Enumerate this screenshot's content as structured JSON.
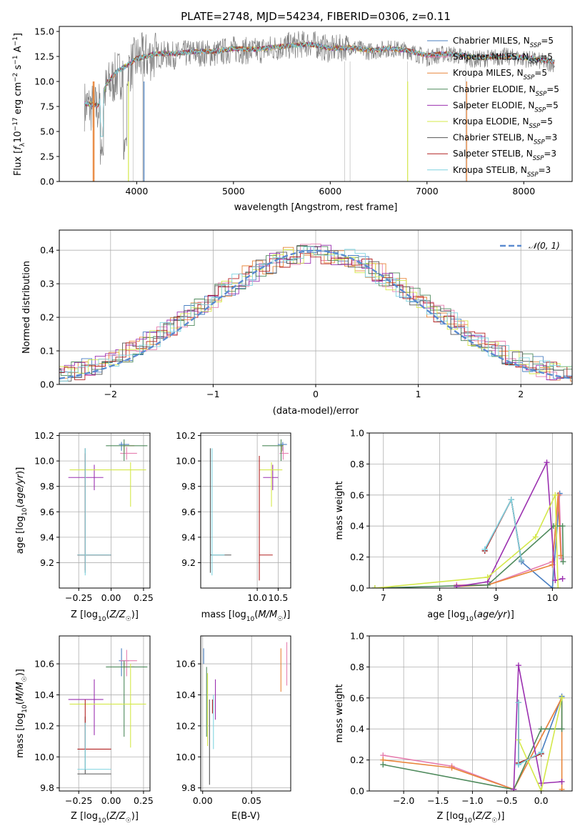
{
  "chart_data": [
    {
      "type": "line",
      "title": "PLATE=2748, MJD=54234, FIBERID=0306, z=0.11",
      "xlabel": "wavelength [Angstrom, rest frame]",
      "ylabel": "Flux [f_λ 10^-17 erg cm^-2 s^-1 A^-1]",
      "xlim": [
        3200,
        8500
      ],
      "ylim": [
        0,
        15.5
      ],
      "xticks": [
        4000,
        5000,
        6000,
        7000,
        8000
      ],
      "yticks": [
        0.0,
        2.5,
        5.0,
        7.5,
        10.0,
        12.5,
        15.0
      ],
      "data_series": {
        "name": "",
        "x": [
          3460,
          3600,
          3700,
          3800,
          3900,
          4000,
          4100,
          4200,
          4400,
          4600,
          4800,
          5000,
          5200,
          5400,
          5600,
          5800,
          6000,
          6200,
          6400,
          6600,
          6800,
          7000,
          7200,
          7500,
          7800,
          8000,
          8300
        ],
        "y": [
          7.6,
          7.2,
          9.5,
          10.6,
          11.0,
          12.2,
          12.4,
          12.7,
          12.6,
          12.9,
          12.8,
          13.2,
          13.0,
          13.3,
          13.6,
          13.8,
          13.2,
          13.5,
          13.0,
          13.3,
          13.1,
          12.4,
          12.8,
          12.2,
          12.5,
          12.3,
          11.8
        ]
      },
      "model_spectrum": {
        "x": [
          3460,
          3600,
          3700,
          3800,
          3900,
          4000,
          4100,
          4200,
          4400,
          4600,
          4800,
          5000,
          5200,
          5400,
          5600,
          5800,
          6000,
          6200,
          6400,
          6600,
          6800,
          7000,
          7200,
          7500,
          7800,
          8000,
          8300
        ],
        "y": [
          7.8,
          7.6,
          10.0,
          11.0,
          11.6,
          12.3,
          12.5,
          12.8,
          12.8,
          13.0,
          13.0,
          13.3,
          13.2,
          13.4,
          13.6,
          13.7,
          13.3,
          13.4,
          13.1,
          13.3,
          13.1,
          12.6,
          12.8,
          12.4,
          12.5,
          12.4,
          12.0
        ]
      },
      "legend_position": "right",
      "legend": [
        {
          "label": "Chabrier MILES, N",
          "sub": "SSP",
          "suffix": "=5",
          "color": "#4a7fc1"
        },
        {
          "label": "Salpeter MILES, N",
          "sub": "SSP",
          "suffix": "=5",
          "color": "#e67fb0"
        },
        {
          "label": "Kroupa MILES, N",
          "sub": "SSP",
          "suffix": "=5",
          "color": "#e8853a"
        },
        {
          "label": "Chabrier ELODIE, N",
          "sub": "SSP",
          "suffix": "=5",
          "color": "#4e8a5c"
        },
        {
          "label": "Salpeter ELODIE, N",
          "sub": "SSP",
          "suffix": "=5",
          "color": "#9b30b0"
        },
        {
          "label": "Kroupa ELODIE, N",
          "sub": "SSP",
          "suffix": "=5",
          "color": "#d4e84a"
        },
        {
          "label": "Chabrier STELIB, N",
          "sub": "SSP",
          "suffix": "=3",
          "color": "#555555"
        },
        {
          "label": "Salpeter STELIB, N",
          "sub": "SSP",
          "suffix": "=3",
          "color": "#b22222"
        },
        {
          "label": "Kroupa STELIB, N",
          "sub": "SSP",
          "suffix": "=3",
          "color": "#7fd4e0"
        }
      ]
    },
    {
      "type": "line",
      "title": "",
      "xlabel": "(data-model)/error",
      "ylabel": "Normed distribution",
      "xlim": [
        -2.5,
        2.5
      ],
      "ylim": [
        0,
        0.46
      ],
      "xticks": [
        -2,
        -1,
        0,
        1,
        2
      ],
      "yticks": [
        0.0,
        0.1,
        0.2,
        0.3,
        0.4
      ],
      "grid": true,
      "legend_position": "top-right",
      "legend_label": "𝒩(0, 1)",
      "histogram_colors": [
        "#4a7fc1",
        "#e67fb0",
        "#e8853a",
        "#4e8a5c",
        "#9b30b0",
        "#d4e84a",
        "#555555",
        "#b22222",
        "#7fd4e0"
      ]
    },
    {
      "type": "scatter",
      "xlabel": "Z [log10(Z/Z☉)]",
      "ylabel": "age  [log10(age/yr)]",
      "xlim": [
        -0.4,
        0.3
      ],
      "ylim": [
        9.0,
        10.22
      ],
      "xticks": [
        -0.25,
        0.0,
        0.25
      ],
      "yticks": [
        9.2,
        9.4,
        9.6,
        9.8,
        10.0,
        10.2
      ],
      "grid": true,
      "points": [
        {
          "x": 0.08,
          "y": 10.13,
          "xerr": [
            0.02,
            0.06
          ],
          "yerr": [
            0.05,
            0.02
          ],
          "color": "#4a7fc1"
        },
        {
          "x": 0.12,
          "y": 10.06,
          "xerr": [
            0.05,
            0.08
          ],
          "yerr": [
            0.05,
            0.05
          ],
          "color": "#e67fb0"
        },
        {
          "x": 0.1,
          "y": 10.12,
          "xerr": [
            0.0,
            0.08
          ],
          "yerr": [
            0.05,
            0.0
          ],
          "color": "#e8853a"
        },
        {
          "x": 0.1,
          "y": 10.12,
          "xerr": [
            0.14,
            0.18
          ],
          "yerr": [
            0.12,
            0.05
          ],
          "color": "#4e8a5c"
        },
        {
          "x": -0.13,
          "y": 9.87,
          "xerr": [
            0.2,
            0.07
          ],
          "yerr": [
            0.1,
            0.1
          ],
          "color": "#9b30b0"
        },
        {
          "x": 0.15,
          "y": 9.93,
          "xerr": [
            0.47,
            0.12
          ],
          "yerr": [
            0.29,
            0.06
          ],
          "color": "#d4e84a"
        },
        {
          "x": -0.2,
          "y": 9.26,
          "xerr": [
            0.06,
            0.2
          ],
          "yerr": [
            0.14,
            0.84
          ],
          "color": "#555555"
        },
        {
          "x": -0.2,
          "y": 9.26,
          "xerr": [
            0.06,
            0.2
          ],
          "yerr": [
            0.12,
            0.8
          ],
          "color": "#b22222"
        },
        {
          "x": -0.2,
          "y": 9.26,
          "xerr": [
            0.06,
            0.2
          ],
          "yerr": [
            0.16,
            0.84
          ],
          "color": "#7fd4e0"
        }
      ]
    },
    {
      "type": "scatter",
      "xlabel": "mass [log10(M/M☉)]",
      "ylabel": "",
      "xlim": [
        8.65,
        10.8
      ],
      "ylim": [
        9.0,
        10.22
      ],
      "xticks": [
        10.0,
        10.5
      ],
      "yticks": [
        9.2,
        9.4,
        9.6,
        9.8,
        10.0,
        10.2
      ],
      "grid": true,
      "points": [
        {
          "x": 10.61,
          "y": 10.13,
          "xerr": [
            0.12,
            0.1
          ],
          "yerr": [
            0.05,
            0.02
          ],
          "color": "#4a7fc1"
        },
        {
          "x": 10.62,
          "y": 10.06,
          "xerr": [
            0.09,
            0.13
          ],
          "yerr": [
            0.05,
            0.05
          ],
          "color": "#e67fb0"
        },
        {
          "x": 10.58,
          "y": 10.12,
          "xerr": [
            0.01,
            0.05
          ],
          "yerr": [
            0.05,
            0.0
          ],
          "color": "#e8853a"
        },
        {
          "x": 10.57,
          "y": 10.12,
          "xerr": [
            0.45,
            0.04
          ],
          "yerr": [
            0.12,
            0.05
          ],
          "color": "#4e8a5c"
        },
        {
          "x": 10.37,
          "y": 9.87,
          "xerr": [
            0.23,
            0.13
          ],
          "yerr": [
            0.1,
            0.1
          ],
          "color": "#9b30b0"
        },
        {
          "x": 10.34,
          "y": 9.93,
          "xerr": [
            0.28,
            0.26
          ],
          "yerr": [
            0.29,
            0.06
          ],
          "color": "#d4e84a"
        },
        {
          "x": 8.88,
          "y": 9.26,
          "xerr": [
            0.0,
            0.5
          ],
          "yerr": [
            0.14,
            0.84
          ],
          "color": "#555555"
        },
        {
          "x": 10.05,
          "y": 9.26,
          "xerr": [
            0.0,
            0.32
          ],
          "yerr": [
            0.2,
            0.78
          ],
          "color": "#b22222"
        },
        {
          "x": 8.92,
          "y": 9.26,
          "xerr": [
            0.0,
            0.3
          ],
          "yerr": [
            0.16,
            0.84
          ],
          "color": "#7fd4e0"
        }
      ]
    },
    {
      "type": "line",
      "xlabel": "age  [log10(age/yr)]",
      "ylabel": "mass weight",
      "xlim": [
        6.75,
        10.35
      ],
      "ylim": [
        0,
        1.0
      ],
      "xticks": [
        7,
        8,
        9,
        10
      ],
      "yticks": [
        0.0,
        0.2,
        0.4,
        0.6,
        0.8,
        1.0
      ],
      "grid": true,
      "series": [
        {
          "color": "#4a7fc1",
          "x": [
            8.8,
            9.27,
            9.45,
            10.0,
            10.13
          ],
          "y": [
            0.25,
            0.57,
            0.17,
            0.0,
            0.61
          ]
        },
        {
          "color": "#e67fb0",
          "x": [
            8.3,
            8.85,
            10.0,
            10.12,
            10.16
          ],
          "y": [
            0.02,
            0.02,
            0.17,
            0.6,
            0.19
          ]
        },
        {
          "color": "#e8853a",
          "x": [
            8.3,
            8.85,
            10.0,
            10.1,
            10.15
          ],
          "y": [
            0.01,
            0.02,
            0.15,
            0.6,
            0.21
          ]
        },
        {
          "color": "#4e8a5c",
          "x": [
            6.85,
            8.85,
            10.02,
            10.18,
            10.19
          ],
          "y": [
            0.0,
            0.02,
            0.4,
            0.4,
            0.17
          ]
        },
        {
          "color": "#9b30b0",
          "x": [
            8.3,
            8.85,
            9.9,
            10.05,
            10.18
          ],
          "y": [
            0.01,
            0.04,
            0.81,
            0.05,
            0.06
          ]
        },
        {
          "color": "#d4e84a",
          "x": [
            6.85,
            8.85,
            9.7,
            10.05,
            10.1
          ],
          "y": [
            0.0,
            0.07,
            0.33,
            0.6,
            0.0
          ]
        },
        {
          "color": "#555555",
          "x": [
            8.8,
            9.27,
            9.45
          ],
          "y": [
            0.24,
            0.57,
            0.18
          ]
        },
        {
          "color": "#b22222",
          "x": [
            8.8,
            9.27,
            9.45
          ],
          "y": [
            0.24,
            0.57,
            0.18
          ]
        },
        {
          "color": "#7fd4e0",
          "x": [
            8.8,
            9.27,
            9.45
          ],
          "y": [
            0.25,
            0.57,
            0.18
          ]
        }
      ]
    },
    {
      "type": "scatter",
      "xlabel": "Z [log10(Z/Z☉)]",
      "ylabel": "mass [log10(M/M☉)]",
      "xlim": [
        -0.4,
        0.3
      ],
      "ylim": [
        9.78,
        10.78
      ],
      "xticks": [
        -0.25,
        0.0,
        0.25
      ],
      "yticks": [
        9.8,
        10.0,
        10.2,
        10.4,
        10.6
      ],
      "grid": true,
      "points": [
        {
          "x": 0.08,
          "y": 10.62,
          "xerr": [
            0.02,
            0.06
          ],
          "yerr": [
            0.1,
            0.08
          ],
          "color": "#4a7fc1"
        },
        {
          "x": 0.12,
          "y": 10.62,
          "xerr": [
            0.05,
            0.08
          ],
          "yerr": [
            0.1,
            0.07
          ],
          "color": "#e67fb0"
        },
        {
          "x": 0.1,
          "y": 10.58,
          "xerr": [
            0.0,
            0.08
          ],
          "yerr": [
            0.01,
            0.03
          ],
          "color": "#e8853a"
        },
        {
          "x": 0.1,
          "y": 10.58,
          "xerr": [
            0.14,
            0.18
          ],
          "yerr": [
            0.45,
            0.04
          ],
          "color": "#4e8a5c"
        },
        {
          "x": -0.13,
          "y": 10.37,
          "xerr": [
            0.2,
            0.07
          ],
          "yerr": [
            0.23,
            0.13
          ],
          "color": "#9b30b0"
        },
        {
          "x": 0.15,
          "y": 10.34,
          "xerr": [
            0.47,
            0.12
          ],
          "yerr": [
            0.28,
            0.26
          ],
          "color": "#d4e84a"
        },
        {
          "x": -0.2,
          "y": 9.89,
          "xerr": [
            0.06,
            0.2
          ],
          "yerr": [
            0.0,
            0.37
          ],
          "color": "#555555"
        },
        {
          "x": -0.2,
          "y": 10.05,
          "xerr": [
            0.06,
            0.2
          ],
          "yerr": [
            0.0,
            0.32
          ],
          "color": "#b22222"
        },
        {
          "x": -0.2,
          "y": 9.92,
          "xerr": [
            0.06,
            0.2
          ],
          "yerr": [
            0.0,
            0.3
          ],
          "color": "#7fd4e0"
        }
      ]
    },
    {
      "type": "scatter",
      "xlabel": "E(B-V)",
      "ylabel": "",
      "xlim": [
        -0.002,
        0.09
      ],
      "ylim": [
        9.78,
        10.78
      ],
      "xticks": [
        0.0,
        0.05
      ],
      "yticks": [
        9.8,
        10.0,
        10.2,
        10.4,
        10.6
      ],
      "grid": true,
      "points": [
        {
          "x": 0.001,
          "y": 10.62,
          "yerr": [
            0.02,
            0.08
          ],
          "color": "#4a7fc1"
        },
        {
          "x": 0.086,
          "y": 10.62,
          "yerr": [
            0.16,
            0.12
          ],
          "color": "#e67fb0"
        },
        {
          "x": 0.08,
          "y": 10.58,
          "yerr": [
            0.16,
            0.12
          ],
          "color": "#e8853a"
        },
        {
          "x": 0.004,
          "y": 10.58,
          "yerr": [
            0.45,
            0.0
          ],
          "color": "#4e8a5c"
        },
        {
          "x": 0.013,
          "y": 10.37,
          "yerr": [
            0.13,
            0.13
          ],
          "color": "#9b30b0"
        },
        {
          "x": 0.005,
          "y": 10.34,
          "yerr": [
            0.27,
            0.2
          ],
          "color": "#d4e84a"
        },
        {
          "x": 0.007,
          "y": 10.0,
          "yerr": [
            0.18,
            0.37
          ],
          "color": "#555555"
        },
        {
          "x": 0.01,
          "y": 10.37,
          "yerr": [
            0.09,
            0.0
          ],
          "color": "#b22222"
        },
        {
          "x": 0.011,
          "y": 10.2,
          "yerr": [
            0.15,
            0.2
          ],
          "color": "#7fd4e0"
        }
      ]
    },
    {
      "type": "line",
      "xlabel": "Z [log10(Z/Z☉)]",
      "ylabel": "mass weight",
      "xlim": [
        -2.5,
        0.45
      ],
      "ylim": [
        0,
        1.0
      ],
      "xticks": [
        -2.0,
        -1.5,
        -1.0,
        -0.5,
        0.0
      ],
      "yticks": [
        0.0,
        0.2,
        0.4,
        0.6,
        0.8,
        1.0
      ],
      "grid": true,
      "series": [
        {
          "color": "#4a7fc1",
          "x": [
            -0.33,
            -0.33,
            0.0,
            0.3
          ],
          "y": [
            0.57,
            0.17,
            0.25,
            0.61
          ]
        },
        {
          "color": "#e67fb0",
          "x": [
            -2.3,
            -1.3,
            -0.4,
            0.3
          ],
          "y": [
            0.23,
            0.16,
            0.01,
            0.6
          ]
        },
        {
          "color": "#e8853a",
          "x": [
            -2.3,
            -1.3,
            -0.4,
            0.3,
            0.3
          ],
          "y": [
            0.2,
            0.15,
            0.01,
            0.6,
            0.01
          ]
        },
        {
          "color": "#4e8a5c",
          "x": [
            -2.3,
            -0.4,
            0.0,
            0.3,
            0.3
          ],
          "y": [
            0.17,
            0.01,
            0.4,
            0.4,
            0.6
          ]
        },
        {
          "color": "#9b30b0",
          "x": [
            -0.4,
            -0.33,
            0.0,
            0.3
          ],
          "y": [
            0.01,
            0.81,
            0.05,
            0.06
          ]
        },
        {
          "color": "#d4e84a",
          "x": [
            -0.33,
            0.0,
            0.3
          ],
          "y": [
            0.33,
            0.0,
            0.6
          ]
        },
        {
          "color": "#555555",
          "x": [
            -0.33,
            -0.33,
            0.0
          ],
          "y": [
            0.57,
            0.18,
            0.24
          ]
        },
        {
          "color": "#b22222",
          "x": [
            -0.33,
            -0.33,
            0.0
          ],
          "y": [
            0.57,
            0.18,
            0.24
          ]
        },
        {
          "color": "#7fd4e0",
          "x": [
            -0.33,
            -0.33,
            0.0
          ],
          "y": [
            0.57,
            0.17,
            0.25
          ]
        }
      ]
    }
  ]
}
